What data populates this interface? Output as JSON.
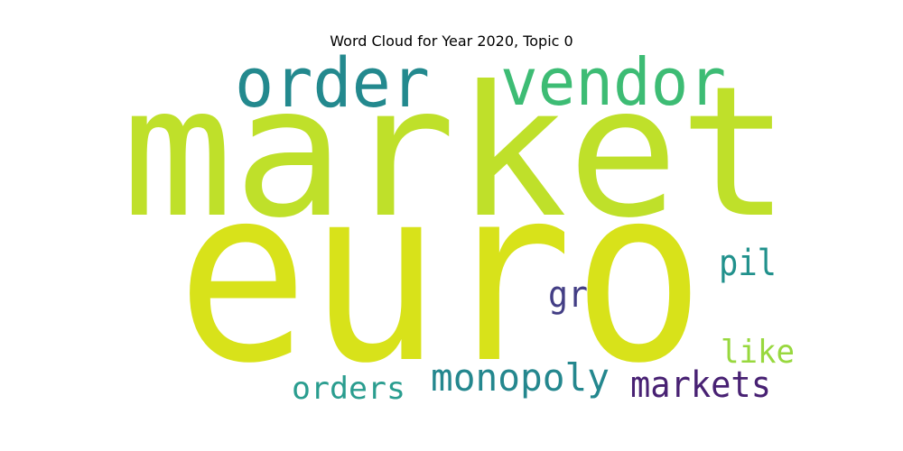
{
  "title": "Word Cloud for Year 2020, Topic 0",
  "words": [
    {
      "text": "market",
      "color": "#bfe02a"
    },
    {
      "text": "euro",
      "color": "#d8e21a"
    },
    {
      "text": "order",
      "color": "#23898e"
    },
    {
      "text": "vendor",
      "color": "#3dbc74"
    },
    {
      "text": "pil",
      "color": "#21918c"
    },
    {
      "text": "gr",
      "color": "#433e85"
    },
    {
      "text": "like",
      "color": "#98d83e"
    },
    {
      "text": "monopoly",
      "color": "#24878e"
    },
    {
      "text": "markets",
      "color": "#482173"
    },
    {
      "text": "orders",
      "color": "#2a9d8f"
    }
  ]
}
